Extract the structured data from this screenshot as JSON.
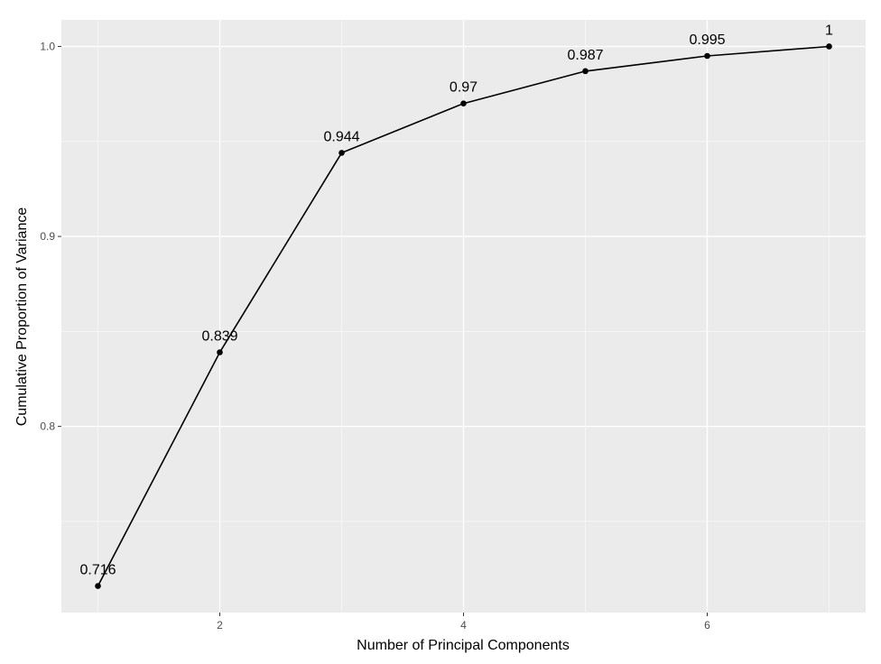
{
  "chart_data": {
    "type": "line",
    "title": "",
    "xlabel": "Number of Principal Components",
    "ylabel": "Cumulative Proportion of Variance",
    "x": [
      1,
      2,
      3,
      4,
      5,
      6,
      7
    ],
    "series": [
      {
        "values": [
          0.716,
          0.839,
          0.944,
          0.97,
          0.987,
          0.995,
          1.0
        ],
        "labels": [
          "0.716",
          "0.839",
          "0.944",
          "0.97",
          "0.987",
          "0.995",
          "1"
        ],
        "color": "#000000"
      }
    ],
    "xlim": [
      0.7,
      7.3
    ],
    "ylim": [
      0.702,
      1.014
    ],
    "xticks": [
      2,
      4,
      6
    ],
    "xtick_labels": [
      "2",
      "4",
      "6"
    ],
    "yticks": [
      0.8,
      0.9,
      1.0
    ],
    "ytick_labels": [
      "0.8",
      "0.9",
      "1.0"
    ],
    "grid": true,
    "panel_background": "#ebebeb",
    "gridline_color": "#ffffff"
  }
}
